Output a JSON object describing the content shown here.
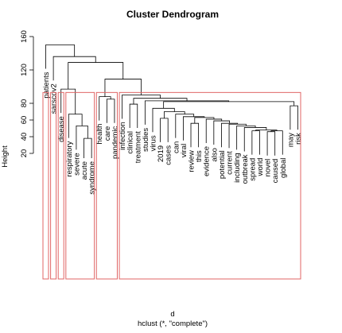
{
  "chart_data": {
    "type": "dendrogram",
    "title": "Cluster Dendrogram",
    "ylabel": "Height",
    "xlabel": "d",
    "sublabel": "hclust (*, \"complete\")",
    "ylim": [
      20,
      160
    ],
    "yticks": [
      20,
      40,
      60,
      80,
      120,
      160
    ],
    "leaves": [
      "patients",
      "sarscov2",
      "disease",
      "respiratory",
      "severe",
      "acute",
      "syndrome",
      "health",
      "care",
      "pandemic",
      "infection",
      "clinical",
      "treatment",
      "studies",
      "virus",
      "2019",
      "cases",
      "can",
      "viral",
      "review",
      "this",
      "evidence",
      "also",
      "potential",
      "current",
      "including",
      "outbreak",
      "spread",
      "world",
      "novel",
      "caused",
      "global",
      "may",
      "risk"
    ],
    "merges": [
      {
        "left": "syndrome",
        "right": "acute",
        "height": 38
      },
      {
        "left": "severe",
        "right": "m1",
        "height": 53
      },
      {
        "left": "respiratory",
        "right": "m2",
        "height": 67
      },
      {
        "left": "disease",
        "right": "m3",
        "height": 97
      },
      {
        "left": "care",
        "right": "pandemic",
        "height": 85
      },
      {
        "left": "health",
        "right": "m5",
        "height": 88
      },
      {
        "left": "novel",
        "right": "caused",
        "height": 46
      },
      {
        "left": "m7",
        "right": "global",
        "height": 47
      },
      {
        "left": "world",
        "right": "spread",
        "height": 47
      },
      {
        "left": "m9",
        "right": "m8",
        "height": 48
      },
      {
        "left": "outbreak",
        "right": "m10",
        "height": 51
      },
      {
        "left": "including",
        "right": "m11",
        "height": 53
      },
      {
        "left": "current",
        "right": "m12",
        "height": 55
      },
      {
        "left": "potential",
        "right": "m13",
        "height": 56
      },
      {
        "left": "this",
        "right": "review",
        "height": 56
      },
      {
        "left": "also",
        "right": "m14",
        "height": 59
      },
      {
        "left": "evidence",
        "right": "m16",
        "height": 61
      },
      {
        "left": "m15",
        "right": "m17",
        "height": 63
      },
      {
        "left": "cases",
        "right": "2019",
        "height": 62
      },
      {
        "left": "viral",
        "right": "m18",
        "height": 64
      },
      {
        "left": "can",
        "right": "m20",
        "height": 67
      },
      {
        "left": "m19",
        "right": "m21",
        "height": 70
      },
      {
        "left": "virus",
        "right": "m22",
        "height": 74
      },
      {
        "left": "may",
        "right": "risk",
        "height": 77
      },
      {
        "left": "m23",
        "right": "m24",
        "height": 82
      },
      {
        "left": "treatment",
        "right": "clinical",
        "height": 79
      },
      {
        "left": "studies",
        "right": "m25",
        "height": 83
      },
      {
        "left": "m26",
        "right": "m27",
        "height": 86
      },
      {
        "left": "infection",
        "right": "m28",
        "height": 90
      },
      {
        "left": "m6",
        "right": "m29",
        "height": 109
      },
      {
        "left": "m4",
        "right": "m30",
        "height": 129
      },
      {
        "left": "sarscov2",
        "right": "m31",
        "height": 136
      },
      {
        "left": "patients",
        "right": "m32",
        "height": 150
      }
    ],
    "cluster_boxes": [
      {
        "from": "patients",
        "to": "patients"
      },
      {
        "from": "sarscov2",
        "to": "sarscov2"
      },
      {
        "from": "disease",
        "to": "disease"
      },
      {
        "from": "respiratory",
        "to": "syndrome"
      },
      {
        "from": "health",
        "to": "pandemic"
      },
      {
        "from": "infection",
        "to": "risk"
      }
    ],
    "box_cut_height": 93,
    "line_color": "#000000",
    "box_color": "#e06666"
  }
}
